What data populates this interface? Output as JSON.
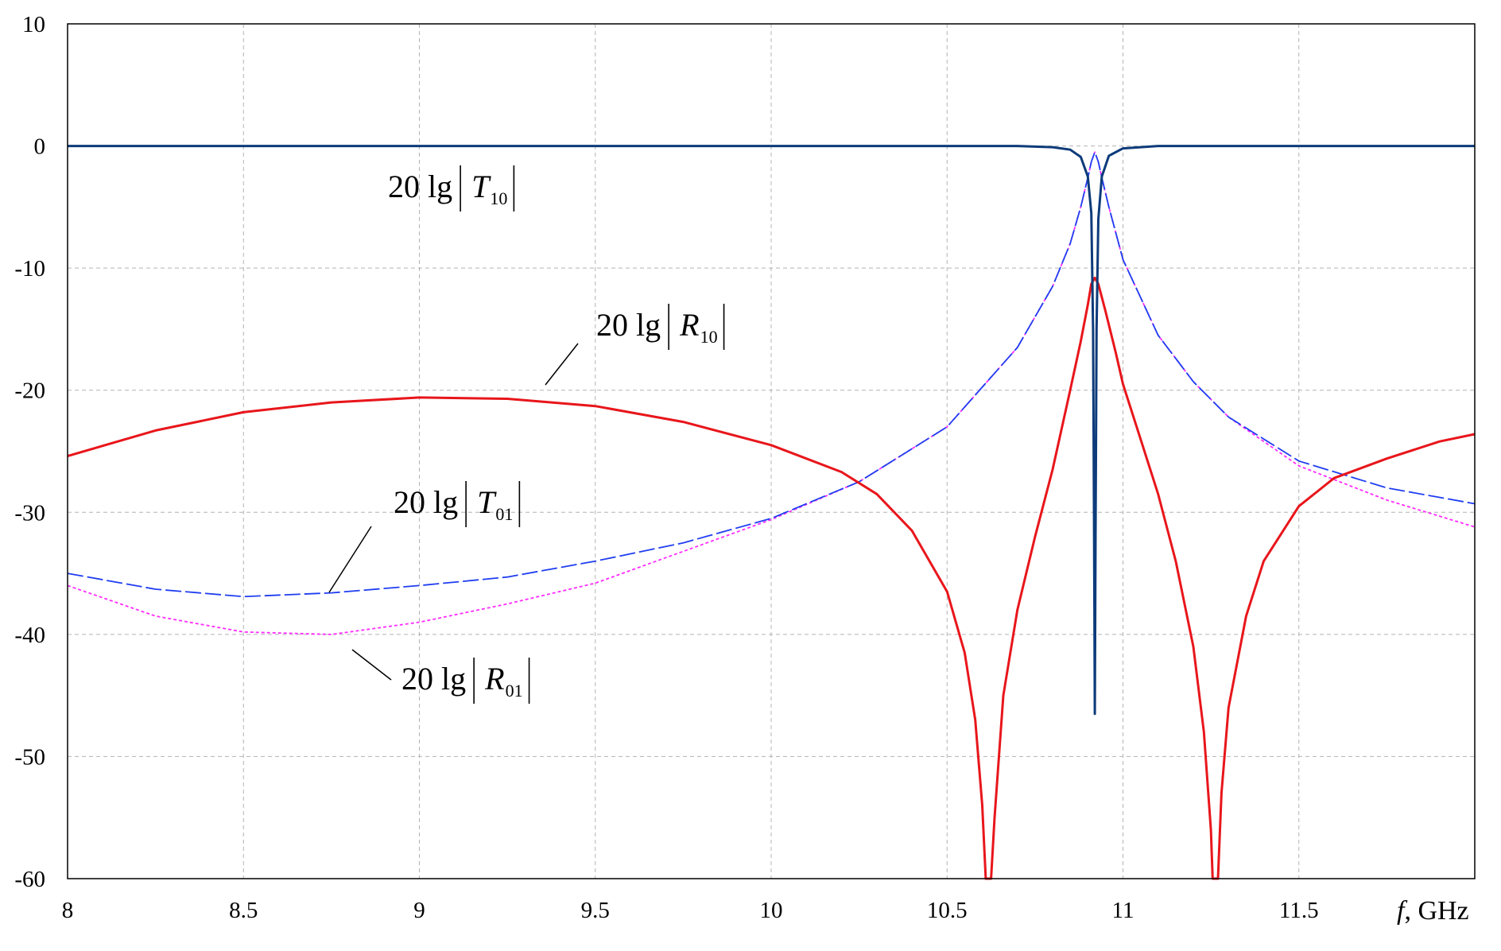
{
  "chart_data": {
    "type": "line",
    "xlabel_var": "f",
    "xlabel_unit": ", GHz",
    "ylabel": "",
    "xlim": [
      8,
      12
    ],
    "ylim": [
      -60,
      10
    ],
    "x_ticks": [
      8,
      8.5,
      9,
      9.5,
      10,
      10.5,
      11,
      11.5
    ],
    "x_tick_labels": [
      "8",
      "8.5",
      "9",
      "9.5",
      "10",
      "10.5",
      "11",
      "11.5"
    ],
    "y_ticks": [
      10,
      0,
      -10,
      -20,
      -30,
      -40,
      -50,
      -60
    ],
    "y_tick_labels": [
      "10",
      "0",
      "-10",
      "-20",
      "-30",
      "-40",
      "-50",
      "-60"
    ],
    "grid": true,
    "legend": "none",
    "series": [
      {
        "key": "T10",
        "color": "#0d3b7a",
        "style": "solid",
        "points": [
          [
            8.0,
            0
          ],
          [
            9.0,
            0
          ],
          [
            10.0,
            0
          ],
          [
            10.7,
            0
          ],
          [
            10.8,
            -0.1
          ],
          [
            10.85,
            -0.3
          ],
          [
            10.88,
            -0.9
          ],
          [
            10.9,
            -2.5
          ],
          [
            10.91,
            -5.5
          ],
          [
            10.915,
            -15
          ],
          [
            10.918,
            -32
          ],
          [
            10.92,
            -46.5
          ],
          [
            10.922,
            -32
          ],
          [
            10.925,
            -15
          ],
          [
            10.93,
            -6
          ],
          [
            10.94,
            -2.5
          ],
          [
            10.96,
            -0.8
          ],
          [
            11.0,
            -0.2
          ],
          [
            11.1,
            0
          ],
          [
            11.5,
            0
          ],
          [
            12.0,
            0
          ]
        ]
      },
      {
        "key": "R10",
        "color": "#e8161b",
        "style": "solid",
        "points": [
          [
            8.0,
            -25.4
          ],
          [
            8.25,
            -23.3
          ],
          [
            8.5,
            -21.8
          ],
          [
            8.75,
            -21.0
          ],
          [
            9.0,
            -20.6
          ],
          [
            9.25,
            -20.7
          ],
          [
            9.5,
            -21.3
          ],
          [
            9.75,
            -22.6
          ],
          [
            10.0,
            -24.5
          ],
          [
            10.2,
            -26.7
          ],
          [
            10.3,
            -28.5
          ],
          [
            10.4,
            -31.5
          ],
          [
            10.5,
            -36.5
          ],
          [
            10.55,
            -41.5
          ],
          [
            10.58,
            -47
          ],
          [
            10.6,
            -54
          ],
          [
            10.61,
            -60
          ],
          [
            10.625,
            -60
          ],
          [
            10.635,
            -55
          ],
          [
            10.66,
            -45
          ],
          [
            10.7,
            -38
          ],
          [
            10.75,
            -32
          ],
          [
            10.8,
            -26.5
          ],
          [
            10.85,
            -20
          ],
          [
            10.88,
            -16
          ],
          [
            10.9,
            -13
          ],
          [
            10.91,
            -11.3
          ],
          [
            10.92,
            -10.8
          ],
          [
            10.93,
            -11.3
          ],
          [
            10.95,
            -13.5
          ],
          [
            10.98,
            -17
          ],
          [
            11.0,
            -19.5
          ],
          [
            11.05,
            -24
          ],
          [
            11.1,
            -28.5
          ],
          [
            11.15,
            -34
          ],
          [
            11.2,
            -41
          ],
          [
            11.23,
            -48
          ],
          [
            11.25,
            -56
          ],
          [
            11.255,
            -60
          ],
          [
            11.27,
            -60
          ],
          [
            11.28,
            -53
          ],
          [
            11.3,
            -46
          ],
          [
            11.35,
            -38.5
          ],
          [
            11.4,
            -34
          ],
          [
            11.5,
            -29.5
          ],
          [
            11.6,
            -27.2
          ],
          [
            11.75,
            -25.6
          ],
          [
            11.9,
            -24.2
          ],
          [
            12.0,
            -23.6
          ]
        ]
      },
      {
        "key": "T01",
        "color": "#1f3df0",
        "style": "dashed",
        "points": [
          [
            8.0,
            -35.0
          ],
          [
            8.25,
            -36.3
          ],
          [
            8.5,
            -36.9
          ],
          [
            8.75,
            -36.6
          ],
          [
            9.0,
            -36.0
          ],
          [
            9.25,
            -35.3
          ],
          [
            9.5,
            -34.0
          ],
          [
            9.75,
            -32.5
          ],
          [
            10.0,
            -30.5
          ],
          [
            10.25,
            -27.5
          ],
          [
            10.5,
            -23.0
          ],
          [
            10.7,
            -16.5
          ],
          [
            10.8,
            -11.5
          ],
          [
            10.85,
            -8.0
          ],
          [
            10.88,
            -5.0
          ],
          [
            10.9,
            -2.6
          ],
          [
            10.91,
            -1.3
          ],
          [
            10.92,
            -0.5
          ],
          [
            10.93,
            -1.3
          ],
          [
            10.94,
            -2.6
          ],
          [
            10.96,
            -5.0
          ],
          [
            11.0,
            -9.3
          ],
          [
            11.1,
            -15.5
          ],
          [
            11.2,
            -19.3
          ],
          [
            11.3,
            -22.2
          ],
          [
            11.5,
            -25.8
          ],
          [
            11.75,
            -28.0
          ],
          [
            12.0,
            -29.3
          ]
        ]
      },
      {
        "key": "R01",
        "color": "#ff2bff",
        "style": "dotted",
        "points": [
          [
            8.0,
            -36.0
          ],
          [
            8.25,
            -38.5
          ],
          [
            8.5,
            -39.8
          ],
          [
            8.75,
            -40.0
          ],
          [
            9.0,
            -39.0
          ],
          [
            9.25,
            -37.5
          ],
          [
            9.5,
            -35.8
          ],
          [
            9.75,
            -33.2
          ],
          [
            10.0,
            -30.6
          ],
          [
            10.25,
            -27.5
          ],
          [
            10.5,
            -23.0
          ],
          [
            10.7,
            -16.5
          ],
          [
            10.8,
            -11.5
          ],
          [
            10.85,
            -8.0
          ],
          [
            10.88,
            -5.0
          ],
          [
            10.9,
            -2.6
          ],
          [
            10.91,
            -1.3
          ],
          [
            10.92,
            -0.5
          ],
          [
            10.93,
            -1.3
          ],
          [
            10.94,
            -2.6
          ],
          [
            10.96,
            -5.0
          ],
          [
            11.0,
            -9.3
          ],
          [
            11.1,
            -15.5
          ],
          [
            11.2,
            -19.3
          ],
          [
            11.3,
            -22.2
          ],
          [
            11.5,
            -26.2
          ],
          [
            11.75,
            -29.0
          ],
          [
            12.0,
            -31.2
          ]
        ]
      }
    ],
    "annotations": [
      {
        "key": "T10",
        "prefix": "20  lg",
        "var": "T",
        "sub": "10"
      },
      {
        "key": "R10",
        "prefix": "20  lg",
        "var": "R",
        "sub": "10"
      },
      {
        "key": "T01",
        "prefix": "20  lg",
        "var": "T",
        "sub": "01"
      },
      {
        "key": "R01",
        "prefix": "20  lg",
        "var": "R",
        "sub": "01"
      }
    ]
  }
}
